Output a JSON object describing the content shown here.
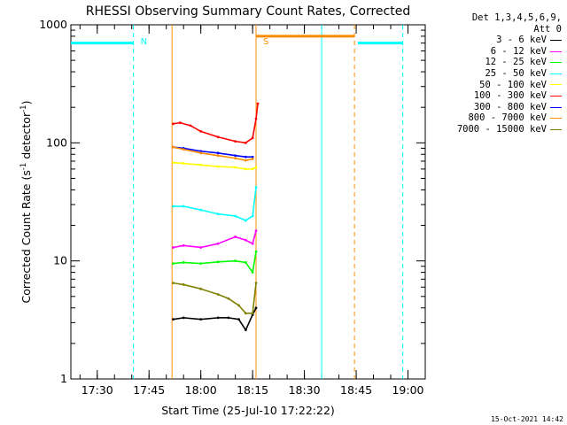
{
  "chart_data": {
    "type": "line",
    "title": "RHESSI Observing Summary Count Rates, Corrected",
    "xlabel": "Start Time (25-Jul-10 17:22:22)",
    "ylabel": "Corrected Count Rate (s⁻¹ detector⁻¹)",
    "ylabel_base": "Corrected Count Rate (s",
    "ylabel_sup1": "-1",
    "ylabel_mid": " detector",
    "ylabel_sup2": "-1",
    "ylabel_end": ")",
    "y_scale": "log",
    "ylim": [
      1,
      1000
    ],
    "y_ticks": [
      1,
      10,
      100,
      1000
    ],
    "y_tick_labels": [
      "1",
      "10",
      "100",
      "1000"
    ],
    "x_range": [
      "17:22:22",
      "19:05:00"
    ],
    "x_ticks": [
      "17:30",
      "17:45",
      "18:00",
      "18:15",
      "18:30",
      "18:45",
      "19:00"
    ],
    "x_tick_labels": [
      "17:30",
      "17:45",
      "18:00",
      "18:15",
      "18:30",
      "18:45",
      "19:00"
    ],
    "legend_title_line1": "Det 1,3,4,5,6,9,",
    "legend_title_line2": "Att 0",
    "legend_placement": "right",
    "series": [
      {
        "name": "3 - 6 keV",
        "color": "#000000",
        "x": [
          "17:52",
          "17:55",
          "18:00",
          "18:05",
          "18:08",
          "18:11",
          "18:13",
          "18:15",
          "18:16"
        ],
        "values": [
          3.2,
          3.3,
          3.2,
          3.3,
          3.3,
          3.2,
          2.6,
          3.5,
          4.0
        ]
      },
      {
        "name": "6 - 12 keV",
        "color": "#ff00ff",
        "x": [
          "17:52",
          "17:55",
          "18:00",
          "18:05",
          "18:10",
          "18:13",
          "18:15",
          "18:16"
        ],
        "values": [
          13,
          13.5,
          13,
          14,
          16,
          15,
          14,
          18
        ]
      },
      {
        "name": "12 - 25 keV",
        "color": "#00ff00",
        "x": [
          "17:52",
          "17:55",
          "18:00",
          "18:05",
          "18:10",
          "18:13",
          "18:15",
          "18:16"
        ],
        "values": [
          9.5,
          9.7,
          9.5,
          9.8,
          10,
          9.7,
          8,
          12
        ]
      },
      {
        "name": "25 - 50 keV",
        "color": "#00ffff",
        "x": [
          "17:52",
          "17:55",
          "18:00",
          "18:05",
          "18:10",
          "18:13",
          "18:15",
          "18:16"
        ],
        "values": [
          29,
          29,
          27,
          25,
          24,
          22,
          24,
          42
        ]
      },
      {
        "name": "50 - 100 keV",
        "color": "#ffff00",
        "x": [
          "17:52",
          "17:55",
          "18:00",
          "18:05",
          "18:10",
          "18:13",
          "18:15",
          "18:16"
        ],
        "values": [
          68,
          67,
          65,
          63,
          62,
          60,
          60,
          62
        ]
      },
      {
        "name": "100 - 300 keV",
        "color": "#ff0000",
        "x": [
          "17:52",
          "17:54",
          "17:57",
          "18:00",
          "18:05",
          "18:10",
          "18:13",
          "18:15",
          "18:16",
          "18:16:30"
        ],
        "values": [
          145,
          148,
          140,
          125,
          112,
          103,
          100,
          110,
          160,
          215
        ]
      },
      {
        "name": "300 - 800 keV",
        "color": "#0000ff",
        "x": [
          "17:52",
          "17:55",
          "18:00",
          "18:05",
          "18:10",
          "18:13",
          "18:15"
        ],
        "values": [
          92,
          90,
          85,
          82,
          78,
          76,
          76
        ]
      },
      {
        "name": "800 - 7000 keV",
        "color": "#ff8c00",
        "x": [
          "17:52",
          "17:55",
          "18:00",
          "18:05",
          "18:10",
          "18:13",
          "18:15"
        ],
        "values": [
          92,
          88,
          82,
          78,
          74,
          71,
          73
        ]
      },
      {
        "name": "7000 - 15000 keV",
        "color": "#808000",
        "x": [
          "17:52",
          "17:55",
          "18:00",
          "18:05",
          "18:08",
          "18:11",
          "18:13",
          "18:15",
          "18:16"
        ],
        "values": [
          6.5,
          6.3,
          5.8,
          5.2,
          4.8,
          4.2,
          3.6,
          3.6,
          6.5
        ]
      }
    ],
    "annotations": [
      {
        "label": "N",
        "time": "17:40:30",
        "color": "#00ffff"
      },
      {
        "label": "S",
        "time": "18:16:00",
        "color": "#ff8c00"
      }
    ],
    "bars": [
      {
        "color": "#00ffff",
        "level": 700,
        "from": "17:22:22",
        "to": "17:40:30"
      },
      {
        "color": "#00ffff",
        "level": 700,
        "from": "18:45:30",
        "to": "18:58:30"
      },
      {
        "color": "#ff8c00",
        "level": 800,
        "from": "18:16:00",
        "to": "18:44:30"
      }
    ],
    "vertical_lines": [
      {
        "time": "17:40:30",
        "color": "#00ffff",
        "style": "dashed"
      },
      {
        "time": "18:58:30",
        "color": "#00ffff",
        "style": "dashed"
      },
      {
        "time": "18:44:30",
        "color": "#ff8c00",
        "style": "dashed"
      },
      {
        "time": "17:51:40",
        "color": "#ff8c00",
        "style": "solid"
      },
      {
        "time": "18:16:00",
        "color": "#ff8c00",
        "style": "solid"
      },
      {
        "time": "18:35:00",
        "color": "#00ffff",
        "style": "solid"
      }
    ]
  },
  "footer": {
    "timestamp": "15-Oct-2021 14:42"
  }
}
